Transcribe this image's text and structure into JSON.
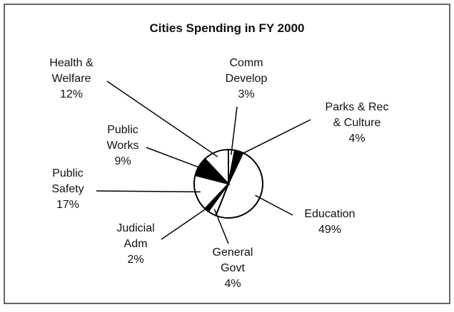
{
  "chart_data": {
    "type": "pie",
    "title": "Cities Spending in FY 2000",
    "categories": [
      "Comm Develop",
      "Parks & Rec & Culture",
      "Education",
      "General Govt",
      "Judicial Adm",
      "Public Safety",
      "Public Works",
      "Health & Welfare"
    ],
    "values": [
      3,
      4,
      49,
      4,
      2,
      17,
      9,
      12
    ],
    "value_labels": [
      "3%",
      "4%",
      "49%",
      "4%",
      "2%",
      "17%",
      "9%",
      "12%"
    ],
    "colors": [
      "#ffffff",
      "#000000",
      "#ffffff",
      "#ffffff",
      "#000000",
      "#ffffff",
      "#000000",
      "#ffffff"
    ]
  }
}
